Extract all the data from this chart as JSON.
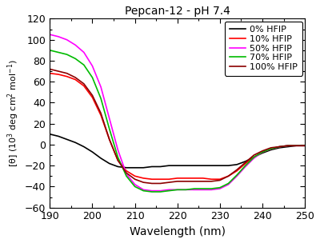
{
  "title": "Pepcan-12 - pH 7.4",
  "xlabel": "Wavelength (nm)",
  "ylabel": "[θ]  (10³ deg cm² mol⁻¹)",
  "xlim": [
    190,
    250
  ],
  "ylim": [
    -60,
    120
  ],
  "yticks": [
    -60,
    -40,
    -20,
    0,
    20,
    40,
    60,
    80,
    100,
    120
  ],
  "xticks": [
    190,
    200,
    210,
    220,
    230,
    240,
    250
  ],
  "bg_color": "#ffffff",
  "series": [
    {
      "label": "0% HFIP",
      "color": "#000000",
      "x": [
        190,
        192,
        194,
        196,
        198,
        200,
        202,
        204,
        206,
        208,
        210,
        212,
        214,
        216,
        218,
        220,
        222,
        224,
        226,
        228,
        230,
        232,
        234,
        236,
        238,
        240,
        242,
        244,
        246,
        248,
        250
      ],
      "y": [
        10,
        8,
        5,
        2,
        -2,
        -7,
        -13,
        -18,
        -21,
        -22,
        -22,
        -22,
        -21,
        -21,
        -20,
        -20,
        -20,
        -20,
        -20,
        -20,
        -20,
        -20,
        -19,
        -16,
        -12,
        -8,
        -5,
        -3,
        -2,
        -1,
        -1
      ]
    },
    {
      "label": "10% HFIP",
      "color": "#ff0000",
      "x": [
        190,
        192,
        194,
        196,
        198,
        200,
        202,
        204,
        206,
        208,
        210,
        212,
        214,
        216,
        218,
        220,
        222,
        224,
        226,
        228,
        230,
        232,
        234,
        236,
        238,
        240,
        242,
        244,
        246,
        248,
        250
      ],
      "y": [
        68,
        67,
        65,
        62,
        56,
        45,
        28,
        5,
        -15,
        -25,
        -30,
        -32,
        -33,
        -33,
        -33,
        -32,
        -32,
        -32,
        -32,
        -33,
        -33,
        -30,
        -25,
        -18,
        -12,
        -7,
        -4,
        -2,
        -1,
        -1,
        -1
      ]
    },
    {
      "label": "50% HFIP",
      "color": "#ff00ff",
      "x": [
        190,
        192,
        194,
        196,
        198,
        200,
        202,
        204,
        206,
        208,
        210,
        212,
        214,
        216,
        218,
        220,
        222,
        224,
        226,
        228,
        230,
        232,
        234,
        236,
        238,
        240,
        242,
        244,
        246,
        248,
        250
      ],
      "y": [
        105,
        103,
        100,
        95,
        88,
        75,
        55,
        25,
        -5,
        -28,
        -38,
        -43,
        -44,
        -44,
        -43,
        -43,
        -43,
        -43,
        -43,
        -43,
        -42,
        -38,
        -30,
        -21,
        -13,
        -7,
        -4,
        -2,
        -1,
        -1,
        -1
      ]
    },
    {
      "label": "70% HFIP",
      "color": "#00bb00",
      "x": [
        190,
        192,
        194,
        196,
        198,
        200,
        202,
        204,
        206,
        208,
        210,
        212,
        214,
        216,
        218,
        220,
        222,
        224,
        226,
        228,
        230,
        232,
        234,
        236,
        238,
        240,
        242,
        244,
        246,
        248,
        250
      ],
      "y": [
        90,
        88,
        86,
        82,
        76,
        64,
        44,
        15,
        -12,
        -30,
        -40,
        -44,
        -45,
        -45,
        -44,
        -43,
        -43,
        -42,
        -42,
        -42,
        -41,
        -37,
        -29,
        -20,
        -12,
        -7,
        -4,
        -2,
        -1,
        -1,
        -1
      ]
    },
    {
      "label": "100% HFIP",
      "color": "#8b0000",
      "x": [
        190,
        192,
        194,
        196,
        198,
        200,
        202,
        204,
        206,
        208,
        210,
        212,
        214,
        216,
        218,
        220,
        222,
        224,
        226,
        228,
        230,
        232,
        234,
        236,
        238,
        240,
        242,
        244,
        246,
        248,
        250
      ],
      "y": [
        72,
        70,
        68,
        64,
        58,
        47,
        30,
        5,
        -15,
        -27,
        -33,
        -36,
        -37,
        -37,
        -36,
        -35,
        -35,
        -35,
        -35,
        -35,
        -34,
        -30,
        -24,
        -17,
        -10,
        -6,
        -3,
        -2,
        -1,
        -1,
        -1
      ]
    }
  ]
}
